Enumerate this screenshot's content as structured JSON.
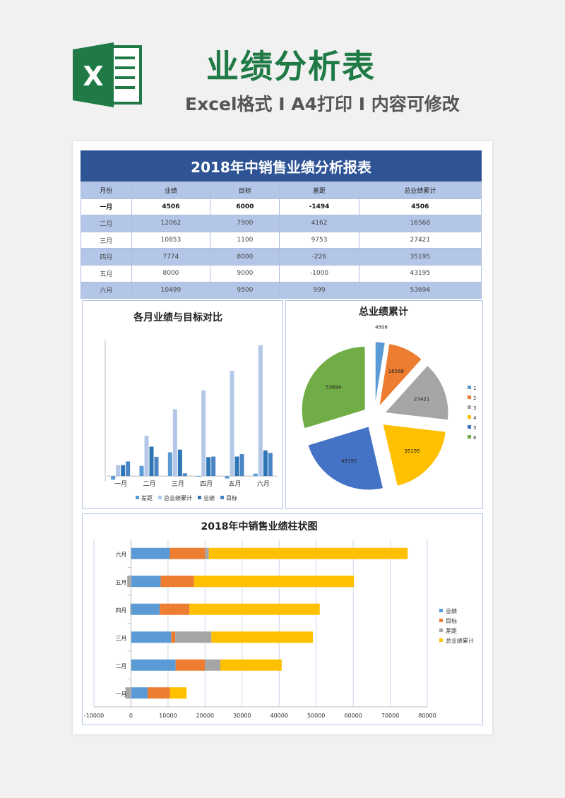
{
  "header": {
    "logo_letter": "X",
    "title": "业绩分析表",
    "subtitle": "Excel格式 I A4打印 I 内容可修改"
  },
  "report": {
    "title": "2018年中销售业绩分析报表",
    "columns": [
      "月份",
      "业绩",
      "目标",
      "差距",
      "总业绩累计"
    ],
    "rows": [
      [
        "一月",
        "4506",
        "6000",
        "-1494",
        "4506"
      ],
      [
        "二月",
        "12062",
        "7900",
        "4162",
        "16568"
      ],
      [
        "三月",
        "10853",
        "1100",
        "9753",
        "27421"
      ],
      [
        "四月",
        "7774",
        "8000",
        "-226",
        "35195"
      ],
      [
        "五月",
        "8000",
        "9000",
        "-1000",
        "43195"
      ],
      [
        "六月",
        "10499",
        "9500",
        "999",
        "53694"
      ]
    ]
  },
  "colors": {
    "header_blue": "#2f5496",
    "brand_green": "#1f7a45",
    "series_blue": "#5b9bd5",
    "series_orange": "#ed7d31",
    "series_gray": "#a5a5a5",
    "series_yellow": "#ffc000",
    "series_darkblue": "#4472c4",
    "series_green": "#70ad47"
  },
  "chart_data": [
    {
      "type": "bar",
      "title": "各月业绩与目标对比",
      "categories": [
        "一月",
        "二月",
        "三月",
        "四月",
        "五月",
        "六月"
      ],
      "series": [
        {
          "name": "差距",
          "values": [
            -1494,
            4162,
            9753,
            -226,
            -1000,
            999
          ]
        },
        {
          "name": "总业绩累计",
          "values": [
            4506,
            16568,
            27421,
            35195,
            43195,
            53694
          ]
        },
        {
          "name": "业绩",
          "values": [
            4506,
            12062,
            10853,
            7774,
            8000,
            10499
          ]
        },
        {
          "name": "目标",
          "values": [
            6000,
            7900,
            1100,
            8000,
            9000,
            9500
          ]
        }
      ],
      "ylim": [
        -2000,
        56000
      ],
      "legend": "bottom"
    },
    {
      "type": "pie",
      "title": "总业绩累计",
      "labels": [
        "1",
        "2",
        "3",
        "4",
        "5",
        "6"
      ],
      "values": [
        4506,
        16568,
        27421,
        35195,
        43195,
        53694
      ],
      "legend": "right"
    },
    {
      "type": "bar",
      "title": "2018年中销售业绩柱状图",
      "categories": [
        "一月",
        "二月",
        "三月",
        "四月",
        "五月",
        "六月"
      ],
      "series": [
        {
          "name": "业绩",
          "values": [
            4506,
            12062,
            10853,
            7774,
            8000,
            10499
          ]
        },
        {
          "name": "目标",
          "values": [
            6000,
            7900,
            1100,
            8000,
            9000,
            9500
          ]
        },
        {
          "name": "差距",
          "values": [
            -1494,
            4162,
            9753,
            -226,
            -1000,
            999
          ]
        },
        {
          "name": "总业绩累计",
          "values": [
            4506,
            16568,
            27421,
            35195,
            43195,
            53694
          ]
        }
      ],
      "xticks": [
        "-10000",
        "0",
        "10000",
        "20000",
        "30000",
        "40000",
        "50000",
        "60000",
        "70000",
        "80000"
      ],
      "xlim": [
        -10000,
        80000
      ],
      "legend": "right"
    }
  ]
}
